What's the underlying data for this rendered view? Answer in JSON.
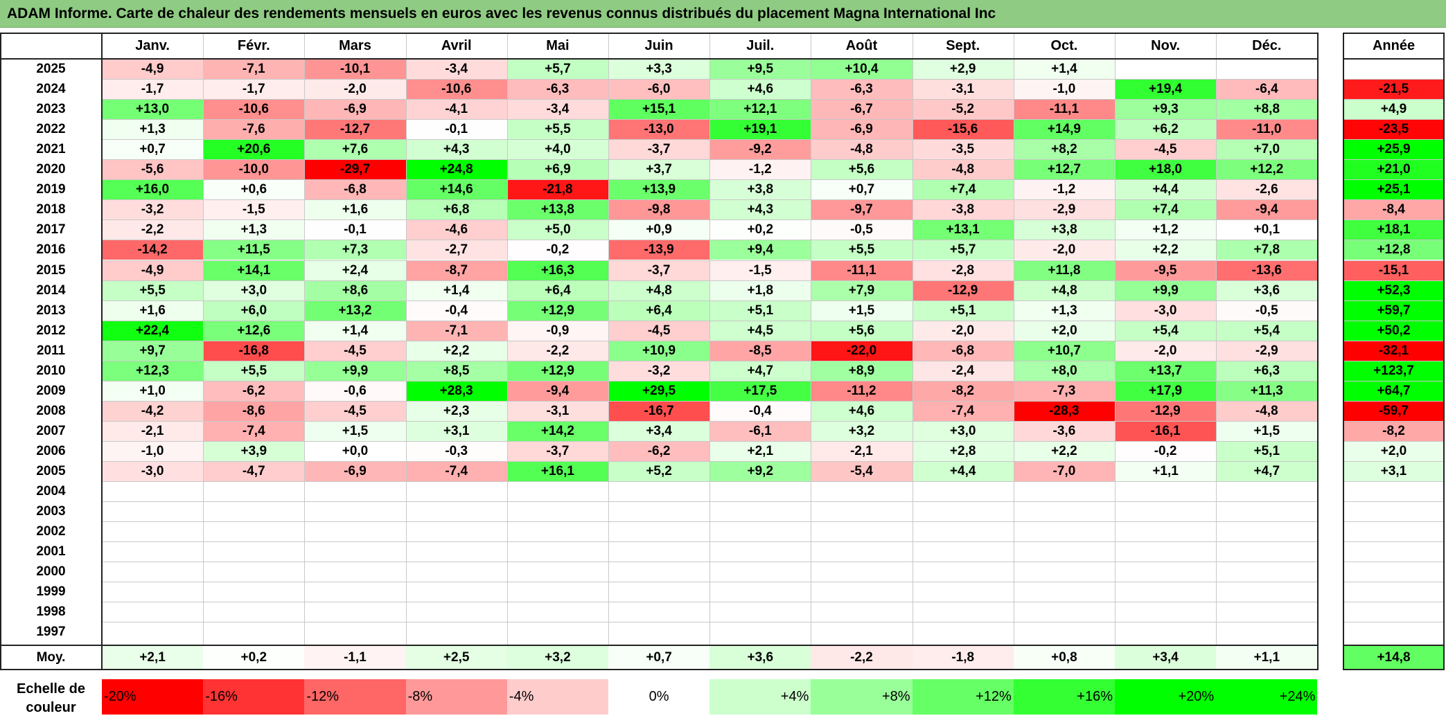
{
  "title": "ADAM Informe. Carte de chaleur des rendements mensuels en euros avec les revenus connus distribués du placement Magna International Inc",
  "chart_data": {
    "type": "heatmap",
    "title": "ADAM Informe. Carte de chaleur des rendements mensuels en euros avec les revenus connus distribués du placement Magna International Inc",
    "months": [
      "Janv.",
      "Févr.",
      "Mars",
      "Avril",
      "Mai",
      "Juin",
      "Juil.",
      "Août",
      "Sept.",
      "Oct.",
      "Nov.",
      "Déc."
    ],
    "year_header": "Année",
    "years": [
      "2025",
      "2024",
      "2023",
      "2022",
      "2021",
      "2020",
      "2019",
      "2018",
      "2017",
      "2016",
      "2015",
      "2014",
      "2013",
      "2012",
      "2011",
      "2010",
      "2009",
      "2008",
      "2007",
      "2006",
      "2005",
      "2004",
      "2003",
      "2002",
      "2001",
      "2000",
      "1999",
      "1998",
      "1997"
    ],
    "values": [
      [
        "-4,9",
        "-7,1",
        "-10,1",
        "-3,4",
        "+5,7",
        "+3,3",
        "+9,5",
        "+10,4",
        "+2,9",
        "+1,4",
        "",
        ""
      ],
      [
        "-1,7",
        "-1,7",
        "-2,0",
        "-10,6",
        "-6,3",
        "-6,0",
        "+4,6",
        "-6,3",
        "-3,1",
        "-1,0",
        "+19,4",
        "-6,4"
      ],
      [
        "+13,0",
        "-10,6",
        "-6,9",
        "-4,1",
        "-3,4",
        "+15,1",
        "+12,1",
        "-6,7",
        "-5,2",
        "-11,1",
        "+9,3",
        "+8,8"
      ],
      [
        "+1,3",
        "-7,6",
        "-12,7",
        "-0,1",
        "+5,5",
        "-13,0",
        "+19,1",
        "-6,9",
        "-15,6",
        "+14,9",
        "+6,2",
        "-11,0"
      ],
      [
        "+0,7",
        "+20,6",
        "+7,6",
        "+4,3",
        "+4,0",
        "-3,7",
        "-9,2",
        "-4,8",
        "-3,5",
        "+8,2",
        "-4,5",
        "+7,0"
      ],
      [
        "-5,6",
        "-10,0",
        "-29,7",
        "+24,8",
        "+6,9",
        "+3,7",
        "-1,2",
        "+5,6",
        "-4,8",
        "+12,7",
        "+18,0",
        "+12,2"
      ],
      [
        "+16,0",
        "+0,6",
        "-6,8",
        "+14,6",
        "-21,8",
        "+13,9",
        "+3,8",
        "+0,7",
        "+7,4",
        "-1,2",
        "+4,4",
        "-2,6"
      ],
      [
        "-3,2",
        "-1,5",
        "+1,6",
        "+6,8",
        "+13,8",
        "-9,8",
        "+4,3",
        "-9,7",
        "-3,8",
        "-2,9",
        "+7,4",
        "-9,4"
      ],
      [
        "-2,2",
        "+1,3",
        "-0,1",
        "-4,6",
        "+5,0",
        "+0,9",
        "+0,2",
        "-0,5",
        "+13,1",
        "+3,8",
        "+1,2",
        "+0,1"
      ],
      [
        "-14,2",
        "+11,5",
        "+7,3",
        "-2,7",
        "-0,2",
        "-13,9",
        "+9,4",
        "+5,5",
        "+5,7",
        "-2,0",
        "+2,2",
        "+7,8"
      ],
      [
        "-4,9",
        "+14,1",
        "+2,4",
        "-8,7",
        "+16,3",
        "-3,7",
        "-1,5",
        "-11,1",
        "-2,8",
        "+11,8",
        "-9,5",
        "-13,6"
      ],
      [
        "+5,5",
        "+3,0",
        "+8,6",
        "+1,4",
        "+6,4",
        "+4,8",
        "+1,8",
        "+7,9",
        "-12,9",
        "+4,8",
        "+9,9",
        "+3,6"
      ],
      [
        "+1,6",
        "+6,0",
        "+13,2",
        "-0,4",
        "+12,9",
        "+6,4",
        "+5,1",
        "+1,5",
        "+5,1",
        "+1,3",
        "-3,0",
        "-0,5"
      ],
      [
        "+22,4",
        "+12,6",
        "+1,4",
        "-7,1",
        "-0,9",
        "-4,5",
        "+4,5",
        "+5,6",
        "-2,0",
        "+2,0",
        "+5,4",
        "+5,4"
      ],
      [
        "+9,7",
        "-16,8",
        "-4,5",
        "+2,2",
        "-2,2",
        "+10,9",
        "-8,5",
        "-22,0",
        "-6,8",
        "+10,7",
        "-2,0",
        "-2,9"
      ],
      [
        "+12,3",
        "+5,5",
        "+9,9",
        "+8,5",
        "+12,9",
        "-3,2",
        "+4,7",
        "+8,9",
        "-2,4",
        "+8,0",
        "+13,7",
        "+6,3"
      ],
      [
        "+1,0",
        "-6,2",
        "-0,6",
        "+28,3",
        "-9,4",
        "+29,5",
        "+17,5",
        "-11,2",
        "-8,2",
        "-7,3",
        "+17,9",
        "+11,3"
      ],
      [
        "-4,2",
        "-8,6",
        "-4,5",
        "+2,3",
        "-3,1",
        "-16,7",
        "-0,4",
        "+4,6",
        "-7,4",
        "-28,3",
        "-12,9",
        "-4,8"
      ],
      [
        "-2,1",
        "-7,4",
        "+1,5",
        "+3,1",
        "+14,2",
        "+3,4",
        "-6,1",
        "+3,2",
        "+3,0",
        "-3,6",
        "-16,1",
        "+1,5"
      ],
      [
        "-1,0",
        "+3,9",
        "+0,0",
        "-0,3",
        "-3,7",
        "-6,2",
        "+2,1",
        "-2,1",
        "+2,8",
        "+2,2",
        "-0,2",
        "+5,1"
      ],
      [
        "-3,0",
        "-4,7",
        "-6,9",
        "-7,4",
        "+16,1",
        "+5,2",
        "+9,2",
        "-5,4",
        "+4,4",
        "-7,0",
        "+1,1",
        "+4,7"
      ],
      [
        "",
        "",
        "",
        "",
        "",
        "",
        "",
        "",
        "",
        "",
        "",
        ""
      ],
      [
        "",
        "",
        "",
        "",
        "",
        "",
        "",
        "",
        "",
        "",
        "",
        ""
      ],
      [
        "",
        "",
        "",
        "",
        "",
        "",
        "",
        "",
        "",
        "",
        "",
        ""
      ],
      [
        "",
        "",
        "",
        "",
        "",
        "",
        "",
        "",
        "",
        "",
        "",
        ""
      ],
      [
        "",
        "",
        "",
        "",
        "",
        "",
        "",
        "",
        "",
        "",
        "",
        ""
      ],
      [
        "",
        "",
        "",
        "",
        "",
        "",
        "",
        "",
        "",
        "",
        "",
        ""
      ],
      [
        "",
        "",
        "",
        "",
        "",
        "",
        "",
        "",
        "",
        "",
        "",
        ""
      ],
      [
        "",
        "",
        "",
        "",
        "",
        "",
        "",
        "",
        "",
        "",
        "",
        ""
      ]
    ],
    "annual": [
      "",
      "-21,5",
      "+4,9",
      "-23,5",
      "+25,9",
      "+21,0",
      "+25,1",
      "-8,4",
      "+18,1",
      "+12,8",
      "-15,1",
      "+52,3",
      "+59,7",
      "+50,2",
      "-32,1",
      "+123,7",
      "+64,7",
      "-59,7",
      "-8,2",
      "+2,0",
      "+3,1",
      "",
      "",
      "",
      "",
      "",
      "",
      "",
      ""
    ],
    "avg_label": "Moy.",
    "avg": [
      "+2,1",
      "+0,2",
      "-1,1",
      "+2,5",
      "+3,2",
      "+0,7",
      "+3,6",
      "-2,2",
      "-1,8",
      "+0,8",
      "+3,4",
      "+1,1"
    ],
    "avg_annual": "+14,8",
    "scale_label": "Echelle de couleur",
    "scale": [
      {
        "label": "-20%",
        "value": -20,
        "align": "left"
      },
      {
        "label": "-16%",
        "value": -16,
        "align": "left"
      },
      {
        "label": "-12%",
        "value": -12,
        "align": "left"
      },
      {
        "label": "-8%",
        "value": -8,
        "align": "left"
      },
      {
        "label": "-4%",
        "value": -4,
        "align": "left"
      },
      {
        "label": "0%",
        "value": 0,
        "align": "center"
      },
      {
        "label": "+4%",
        "value": 4,
        "align": "right"
      },
      {
        "label": "+8%",
        "value": 8,
        "align": "right"
      },
      {
        "label": "+12%",
        "value": 12,
        "align": "right"
      },
      {
        "label": "+16%",
        "value": 16,
        "align": "right"
      },
      {
        "label": "+20%",
        "value": 20,
        "align": "right"
      },
      {
        "label": "+24%",
        "value": 24,
        "align": "right"
      }
    ],
    "colors": {
      "negative_max": "#ff0000",
      "neutral": "#ffffff",
      "positive_max": "#00ff00",
      "title_bar": "#8fcb83"
    }
  }
}
